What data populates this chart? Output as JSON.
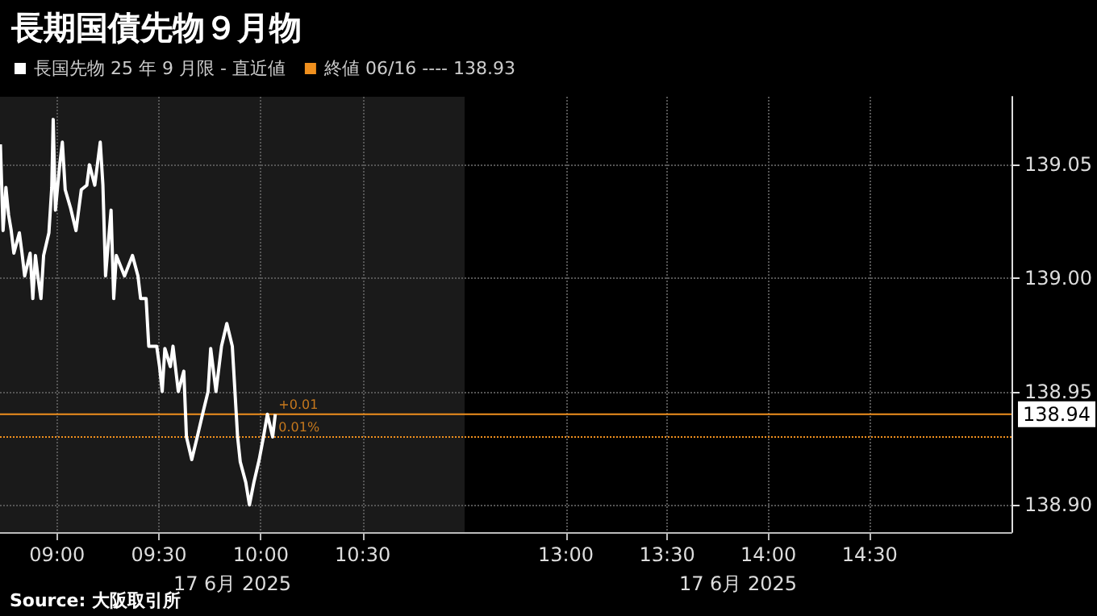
{
  "chart_data": [
    {
      "type": "line",
      "title": "長期国債先物９月物",
      "xlabel": "17 6月 2025",
      "legend": "top",
      "grid": true,
      "tick_labels": "x",
      "marker": "none",
      "line_style": "solid",
      "xlim": [
        8.72,
        11.0
      ],
      "xticks": [
        {
          "value": 9,
          "label": "09:00"
        },
        {
          "value": 9.5,
          "label": "09:30"
        },
        {
          "value": 10,
          "label": "10:00"
        },
        {
          "value": 10.5,
          "label": "10:30"
        }
      ],
      "ylim": [
        138.888,
        139.08
      ],
      "yticks": [
        138.9,
        138.95,
        139.0,
        139.05
      ],
      "series": [
        {
          "name": "長国先物 25 年 9 月限 - 直近値",
          "color": "#ffffff",
          "x": [
            8.722,
            8.735,
            8.749,
            8.762,
            8.775,
            8.788,
            8.815,
            8.828,
            8.841,
            8.868,
            8.881,
            8.894,
            8.907,
            8.921,
            8.934,
            8.96,
            8.974,
            8.981,
            8.992,
            9.013,
            9.026,
            9.04,
            9.066,
            9.093,
            9.119,
            9.146,
            9.159,
            9.185,
            9.212,
            9.225,
            9.238,
            9.265,
            9.278,
            9.291,
            9.331,
            9.37,
            9.397,
            9.41,
            9.437,
            9.45,
            9.489,
            9.503,
            9.516,
            9.529,
            9.556,
            9.569,
            9.595,
            9.622,
            9.635,
            9.661,
            9.688,
            9.714,
            9.741,
            9.754,
            9.78,
            9.807,
            9.833,
            9.86,
            9.873,
            9.886,
            9.899,
            9.926,
            9.944,
            9.966,
            9.992,
            10.013,
            10.032,
            10.058,
            10.071
          ],
          "values": [
            139.059,
            139.021,
            139.04,
            139.028,
            139.021,
            139.011,
            139.02,
            139.011,
            139.001,
            139.011,
            138.991,
            139.01,
            139.0,
            138.991,
            139.01,
            139.02,
            139.04,
            139.07,
            139.03,
            139.05,
            139.06,
            139.039,
            139.031,
            139.021,
            139.039,
            139.041,
            139.05,
            139.041,
            139.06,
            139.041,
            139.001,
            139.03,
            138.991,
            139.01,
            139.001,
            139.01,
            139.001,
            138.991,
            138.991,
            138.97,
            138.97,
            138.961,
            138.95,
            138.969,
            138.961,
            138.97,
            138.95,
            138.959,
            138.93,
            138.92,
            138.93,
            138.94,
            138.95,
            138.969,
            138.95,
            138.97,
            138.98,
            138.97,
            138.95,
            138.93,
            138.919,
            138.91,
            138.9,
            138.91,
            138.92,
            138.93,
            138.94,
            138.93,
            138.94
          ]
        }
      ],
      "ref_lines": [
        {
          "axis": "y",
          "value": 138.94,
          "color": "#f0901e",
          "line_style": "solid"
        },
        {
          "axis": "y",
          "value": 138.93,
          "color": "#f0901e",
          "line_style": "dotted",
          "label": "終値 06/16 ---- 138.93"
        }
      ],
      "annotations": [
        {
          "text": "+0.01",
          "x": 10.071,
          "y": 138.94
        },
        {
          "text": "0.01%",
          "x": 10.071,
          "y": 138.93
        },
        "Source: 大阪取引所"
      ]
    },
    {
      "type": "line",
      "xlabel": "17 6月 2025",
      "grid": true,
      "xlim": [
        12.5,
        15.2
      ],
      "xticks": [
        {
          "value": 13,
          "label": "13:00"
        },
        {
          "value": 13.5,
          "label": "13:30"
        },
        {
          "value": 14,
          "label": "14:00"
        },
        {
          "value": 14.5,
          "label": "14:30"
        }
      ],
      "ylim": [
        138.888,
        139.08
      ],
      "yticks": [
        {
          "value": 138.9,
          "label": "138.90"
        },
        {
          "value": 138.95,
          "label": "138.95"
        },
        {
          "value": 139.0,
          "label": "139.00"
        },
        {
          "value": 139.05,
          "label": "139.05"
        }
      ],
      "ref_lines": [
        {
          "axis": "y",
          "value": 138.94,
          "color": "#f0901e",
          "line_style": "solid",
          "label": "138.94"
        },
        {
          "axis": "y",
          "value": 138.93,
          "color": "#f0901e",
          "line_style": "dotted"
        }
      ]
    }
  ]
}
